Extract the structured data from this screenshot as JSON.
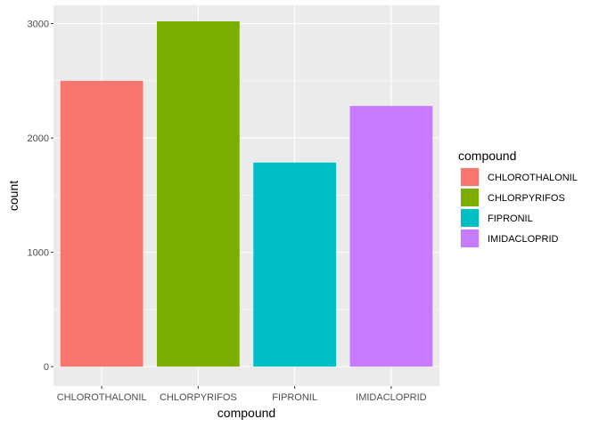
{
  "chart_data": {
    "type": "bar",
    "categories": [
      "CHLOROTHALONIL",
      "CHLORPYRIFOS",
      "FIPRONIL",
      "IMIDACLOPRID"
    ],
    "values": [
      2500,
      3020,
      1785,
      2280
    ],
    "colors": [
      "#F8766D",
      "#7CAE00",
      "#00BFC4",
      "#C77CFF"
    ],
    "xlabel": "compound",
    "ylabel": "count",
    "ylim": [
      -170,
      3160
    ],
    "yticks": [
      0,
      1000,
      2000,
      3000
    ],
    "ytick_labels": [
      "0",
      "1000",
      "2000",
      "3000"
    ],
    "minor_yticks": [
      500,
      1500,
      2500
    ],
    "grid": true,
    "panel_background": "#EBEBEB",
    "grid_color": "#FFFFFF",
    "legend": {
      "title": "compound",
      "position": "right",
      "items": [
        "CHLOROTHALONIL",
        "CHLORPYRIFOS",
        "FIPRONIL",
        "IMIDACLOPRID"
      ]
    }
  }
}
